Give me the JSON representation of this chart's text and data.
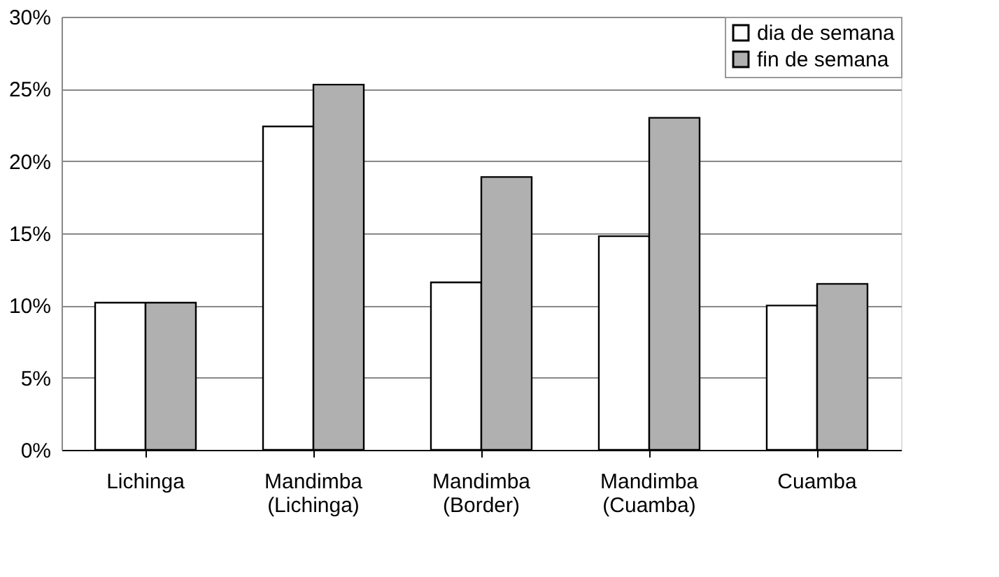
{
  "chart_data": {
    "type": "bar",
    "categories": [
      "Lichinga",
      "Mandimba (Lichinga)",
      "Mandimba (Border)",
      "Mandimba (Cuamba)",
      "Cuamba"
    ],
    "series": [
      {
        "name": "dia de semana",
        "color": "#ffffff",
        "values": [
          10.2,
          22.4,
          11.6,
          14.8,
          10.0
        ]
      },
      {
        "name": "fin de semana",
        "color": "#b0b0b0",
        "values": [
          10.2,
          25.3,
          18.9,
          23.0,
          11.5
        ]
      }
    ],
    "ylim": [
      0,
      30
    ],
    "yticks": [
      {
        "value": 0,
        "label": "0%"
      },
      {
        "value": 5,
        "label": "5%"
      },
      {
        "value": 10,
        "label": "10%"
      },
      {
        "value": 15,
        "label": "15%"
      },
      {
        "value": 20,
        "label": "20%"
      },
      {
        "value": 25,
        "label": "25%"
      },
      {
        "value": 30,
        "label": "30%"
      }
    ],
    "grid": "y",
    "legend": "top right"
  }
}
